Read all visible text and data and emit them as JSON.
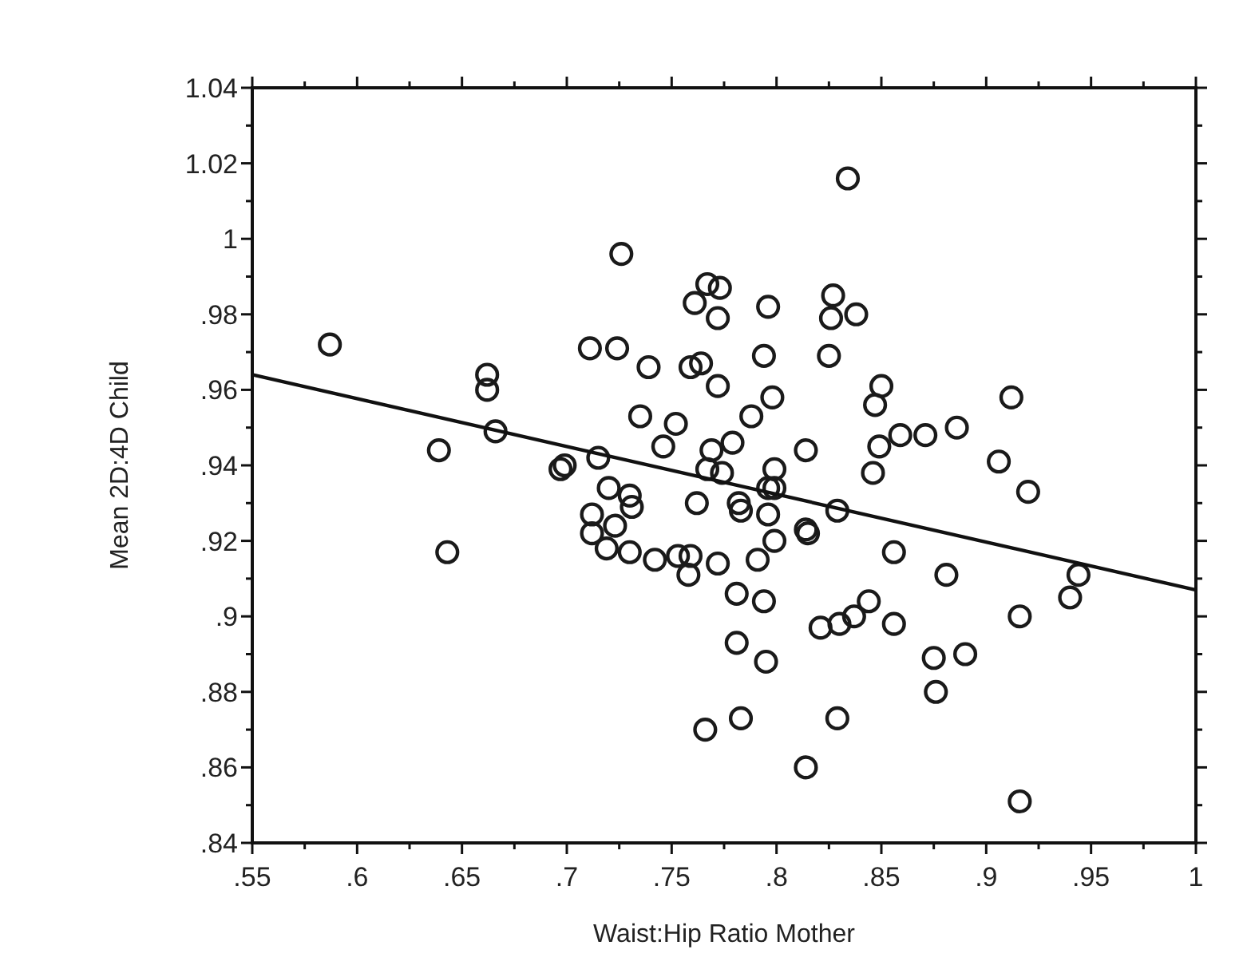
{
  "chart_data": {
    "type": "scatter",
    "xlabel": "Waist:Hip Ratio Mother",
    "ylabel": "Mean 2D:4D Child",
    "xlim": [
      0.55,
      1
    ],
    "ylim": [
      0.84,
      1.04
    ],
    "grid": false,
    "xticks": [
      {
        "value": 0.55,
        "label": ".55"
      },
      {
        "value": 0.575,
        "label": null
      },
      {
        "value": 0.6,
        "label": ".6"
      },
      {
        "value": 0.625,
        "label": null
      },
      {
        "value": 0.65,
        "label": ".65"
      },
      {
        "value": 0.675,
        "label": null
      },
      {
        "value": 0.7,
        "label": ".7"
      },
      {
        "value": 0.725,
        "label": null
      },
      {
        "value": 0.75,
        "label": ".75"
      },
      {
        "value": 0.775,
        "label": null
      },
      {
        "value": 0.8,
        "label": ".8"
      },
      {
        "value": 0.825,
        "label": null
      },
      {
        "value": 0.85,
        "label": ".85"
      },
      {
        "value": 0.875,
        "label": null
      },
      {
        "value": 0.9,
        "label": ".9"
      },
      {
        "value": 0.925,
        "label": null
      },
      {
        "value": 0.95,
        "label": ".95"
      },
      {
        "value": 0.975,
        "label": null
      },
      1
    ],
    "yticks": [
      {
        "value": 0.84,
        "label": ".84"
      },
      {
        "value": 0.85,
        "label": null
      },
      {
        "value": 0.86,
        "label": ".86"
      },
      {
        "value": 0.87,
        "label": null
      },
      {
        "value": 0.88,
        "label": ".88"
      },
      {
        "value": 0.89,
        "label": null
      },
      {
        "value": 0.9,
        "label": ".9"
      },
      {
        "value": 0.91,
        "label": null
      },
      {
        "value": 0.92,
        "label": ".92"
      },
      {
        "value": 0.93,
        "label": null
      },
      {
        "value": 0.94,
        "label": ".94"
      },
      {
        "value": 0.95,
        "label": null
      },
      {
        "value": 0.96,
        "label": ".96"
      },
      {
        "value": 0.97,
        "label": null
      },
      {
        "value": 0.98,
        "label": ".98"
      },
      {
        "value": 0.99,
        "label": null
      },
      1,
      {
        "value": 1.01,
        "label": null
      },
      1.02,
      {
        "value": 1.03,
        "label": null
      },
      1.04
    ],
    "series": [
      {
        "marker": "circle",
        "color": "#1a1a1a",
        "x": [
          0.587,
          0.662,
          0.662,
          0.666,
          0.639,
          0.643,
          0.834,
          0.726,
          0.767,
          0.773,
          0.761,
          0.772,
          0.796,
          0.827,
          0.826,
          0.838,
          0.711,
          0.724,
          0.739,
          0.759,
          0.764,
          0.772,
          0.794,
          0.825,
          0.798,
          0.788,
          0.735,
          0.752,
          0.746,
          0.779,
          0.769,
          0.814,
          0.697,
          0.699,
          0.715,
          0.767,
          0.774,
          0.799,
          0.72,
          0.73,
          0.731,
          0.712,
          0.762,
          0.782,
          0.783,
          0.796,
          0.799,
          0.829,
          0.847,
          0.85,
          0.849,
          0.846,
          0.859,
          0.871,
          0.886,
          0.912,
          0.906,
          0.92,
          0.712,
          0.723,
          0.719,
          0.73,
          0.742,
          0.753,
          0.759,
          0.758,
          0.772,
          0.796,
          0.791,
          0.799,
          0.814,
          0.815,
          0.781,
          0.794,
          0.781,
          0.795,
          0.821,
          0.83,
          0.837,
          0.844,
          0.766,
          0.783,
          0.829,
          0.814,
          0.856,
          0.881,
          0.856,
          0.944,
          0.94,
          0.916,
          0.875,
          0.89,
          0.876,
          0.916
        ],
        "values": [
          0.972,
          0.964,
          0.96,
          0.949,
          0.944,
          0.917,
          1.016,
          0.996,
          0.988,
          0.987,
          0.983,
          0.979,
          0.982,
          0.985,
          0.979,
          0.98,
          0.971,
          0.971,
          0.966,
          0.966,
          0.967,
          0.961,
          0.969,
          0.969,
          0.958,
          0.953,
          0.953,
          0.951,
          0.945,
          0.946,
          0.944,
          0.944,
          0.939,
          0.94,
          0.942,
          0.939,
          0.938,
          0.939,
          0.934,
          0.932,
          0.929,
          0.927,
          0.93,
          0.93,
          0.928,
          0.934,
          0.934,
          0.928,
          0.956,
          0.961,
          0.945,
          0.938,
          0.948,
          0.948,
          0.95,
          0.958,
          0.941,
          0.933,
          0.922,
          0.924,
          0.918,
          0.917,
          0.915,
          0.916,
          0.916,
          0.911,
          0.914,
          0.927,
          0.915,
          0.92,
          0.923,
          0.922,
          0.906,
          0.904,
          0.893,
          0.888,
          0.897,
          0.898,
          0.9,
          0.904,
          0.87,
          0.873,
          0.873,
          0.86,
          0.917,
          0.911,
          0.898,
          0.911,
          0.905,
          0.9,
          0.889,
          0.89,
          0.88,
          0.851
        ]
      },
      {
        "type": "line",
        "marker": "none",
        "color": "#111111",
        "x": [
          0.55,
          1
        ],
        "values": [
          0.964,
          0.907
        ]
      }
    ]
  }
}
